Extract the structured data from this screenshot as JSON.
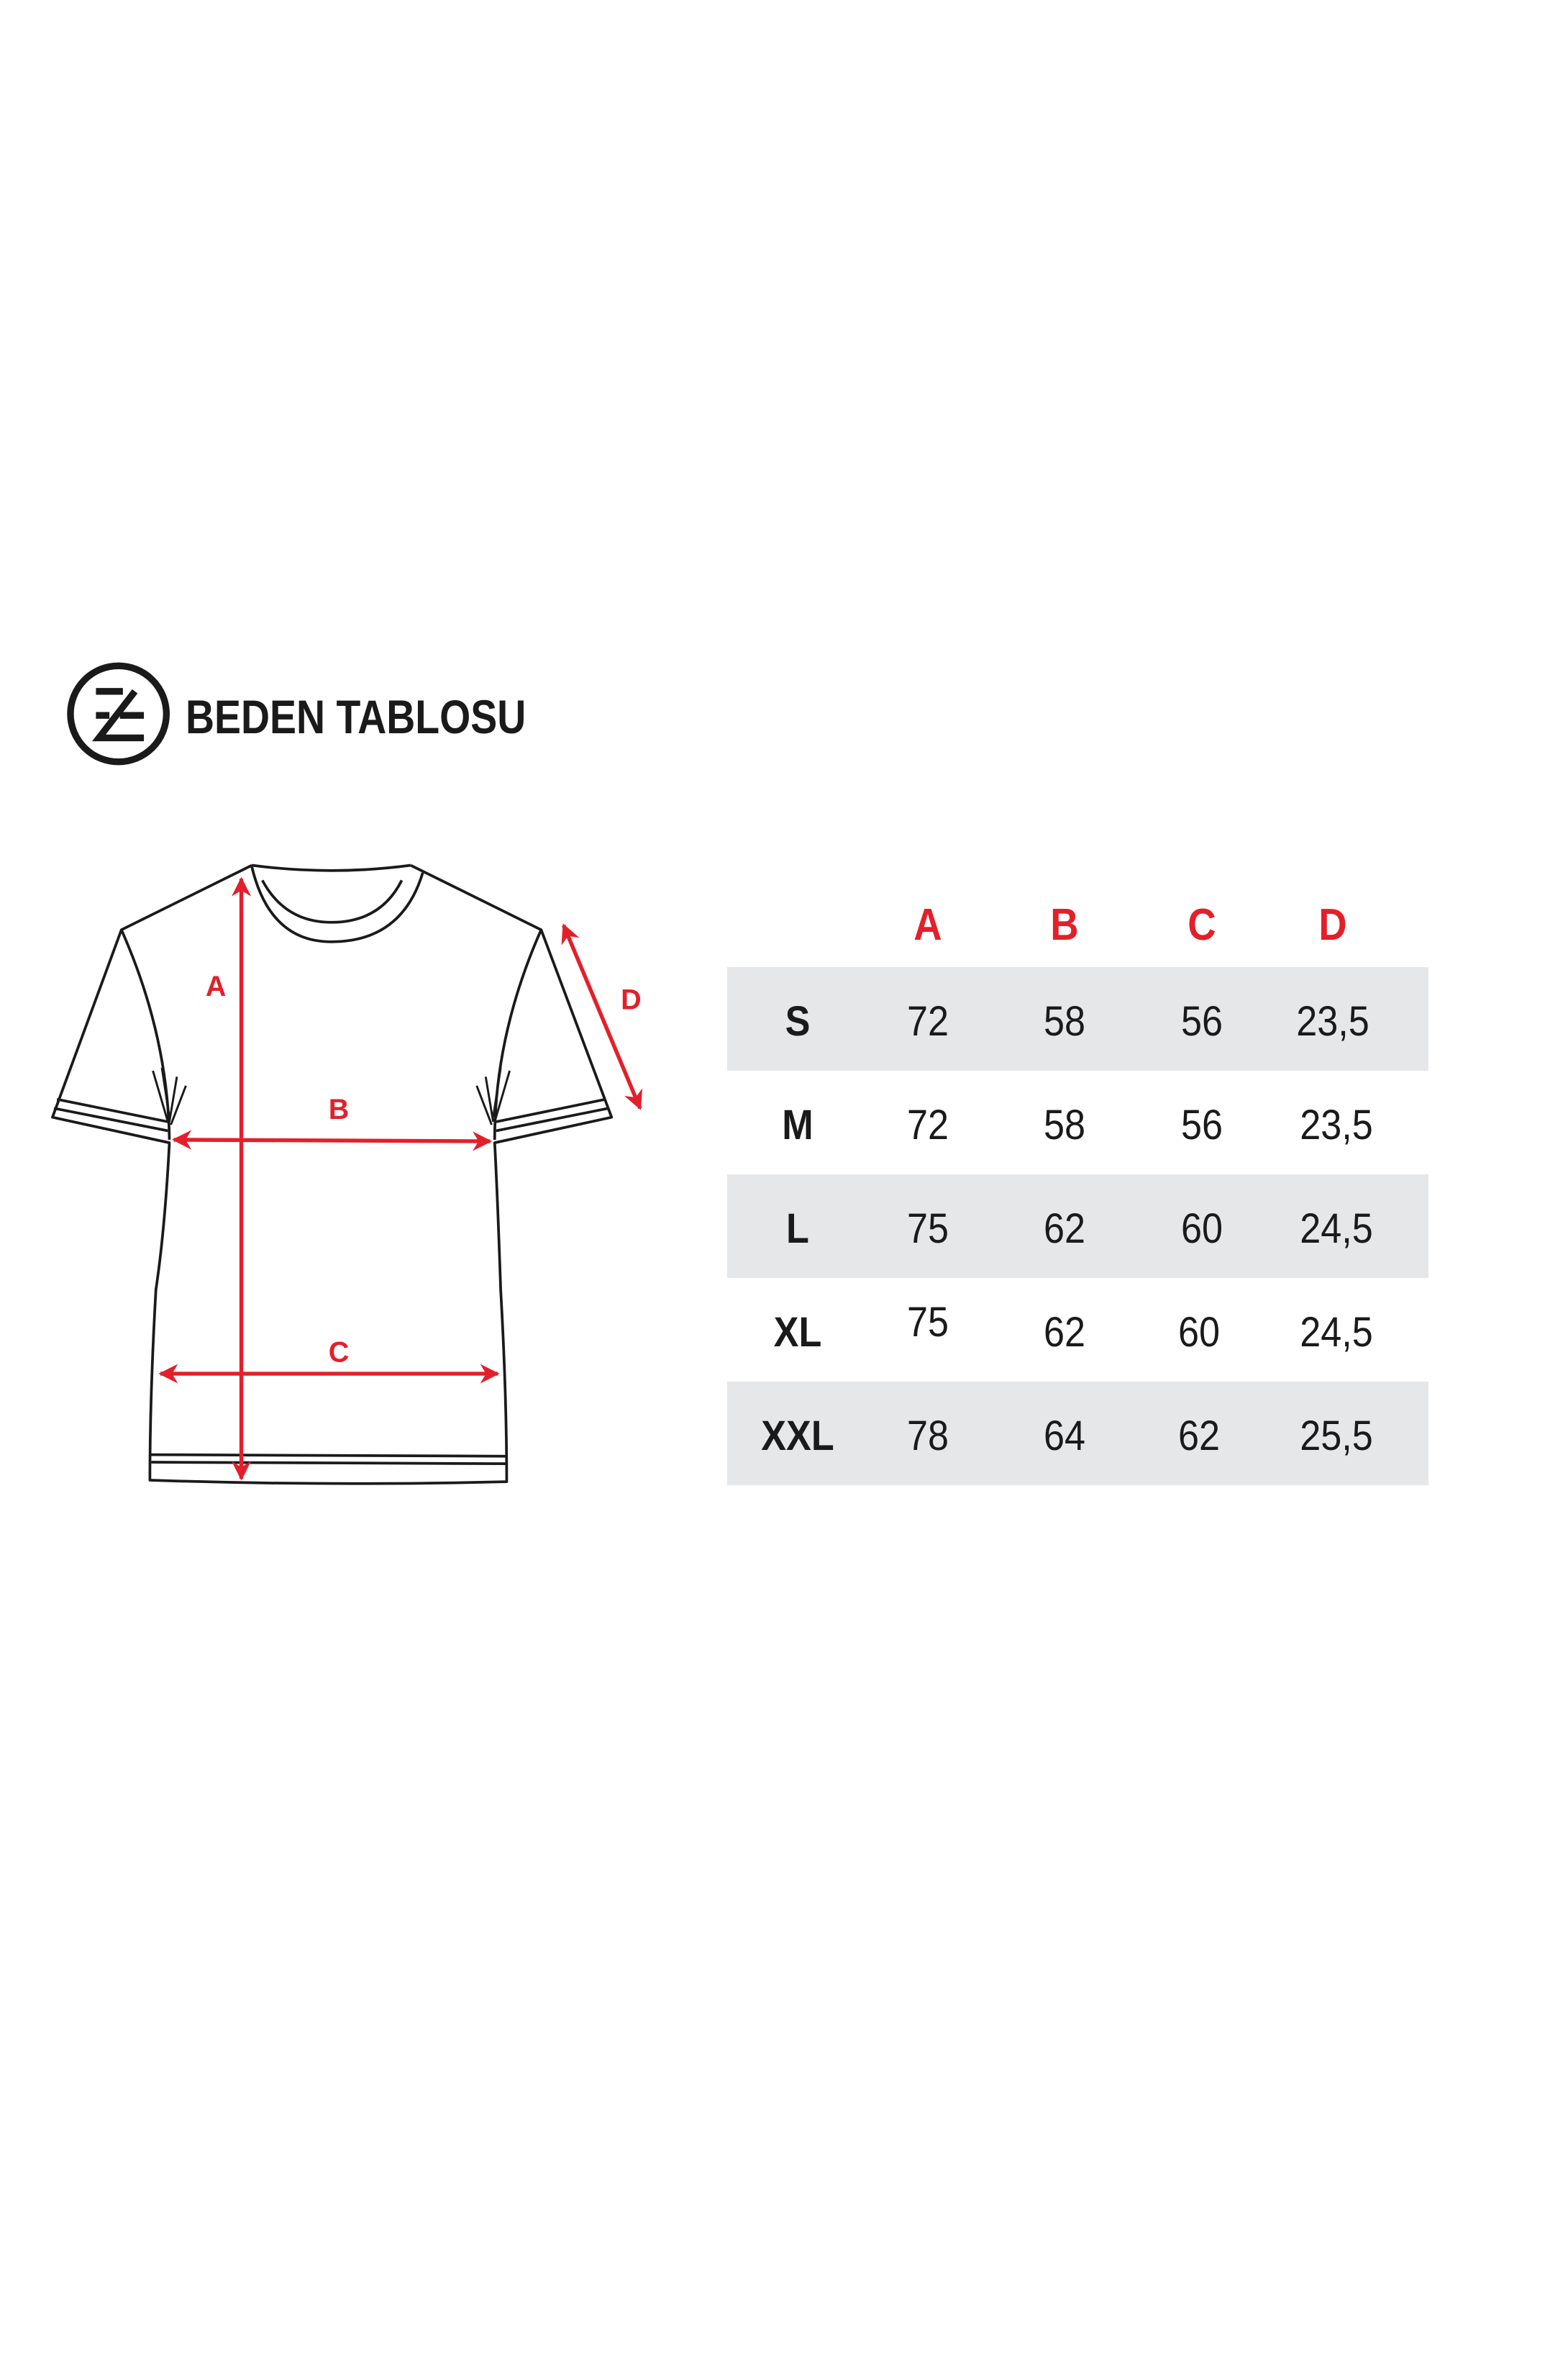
{
  "header": {
    "logo_letter": "Z",
    "title": "BEDEN TABLOSU"
  },
  "diagram": {
    "labels": {
      "a": "A",
      "b": "B",
      "c": "C",
      "d": "D"
    },
    "arrow_color": "#e3202a"
  },
  "table": {
    "columns": [
      "A",
      "B",
      "C",
      "D"
    ],
    "rows": [
      {
        "size": "S",
        "values": [
          "72",
          "58",
          "56",
          "23,5"
        ]
      },
      {
        "size": "M",
        "values": [
          "72",
          "58",
          "56",
          "23,5"
        ]
      },
      {
        "size": "L",
        "values": [
          "75",
          "62",
          "60",
          "24,5"
        ]
      },
      {
        "size": "XL",
        "values": [
          "75",
          "62",
          "60",
          "24,5"
        ]
      },
      {
        "size": "XXL",
        "values": [
          "78",
          "64",
          "62",
          "25,5"
        ]
      }
    ],
    "shade_color": "#e6e7e9"
  }
}
